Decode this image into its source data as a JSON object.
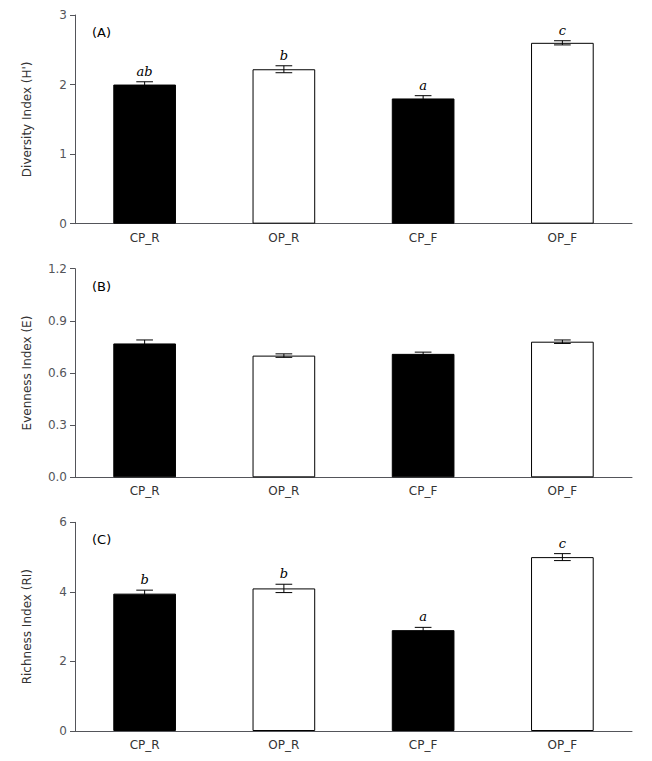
{
  "chart_data": [
    {
      "type": "bar",
      "title": "(A)",
      "ylabel": "Diversity Index (H')",
      "categories": [
        "CP_R",
        "OP_R",
        "CP_F",
        "OP_F"
      ],
      "values": [
        2.0,
        2.22,
        1.8,
        2.6
      ],
      "errors": [
        0.04,
        0.05,
        0.04,
        0.03
      ],
      "significance": [
        "ab",
        "b",
        "a",
        "c"
      ],
      "colors": [
        "#000000",
        "#ffffff",
        "#000000",
        "#ffffff"
      ],
      "ylim": [
        0,
        3
      ],
      "yticks": [
        0,
        1,
        2,
        3
      ],
      "grid": false
    },
    {
      "type": "bar",
      "title": "(B)",
      "ylabel": "Evenness Index (E)",
      "categories": [
        "CP_R",
        "OP_R",
        "CP_F",
        "OP_F"
      ],
      "values": [
        0.77,
        0.7,
        0.71,
        0.78
      ],
      "errors": [
        0.02,
        0.01,
        0.01,
        0.01
      ],
      "colors": [
        "#000000",
        "#ffffff",
        "#000000",
        "#ffffff"
      ],
      "ylim": [
        0,
        1.2
      ],
      "yticks": [
        {
          "value": 0,
          "label": "0.0"
        },
        0.3,
        0.6,
        0.9,
        1.2
      ],
      "grid": false
    },
    {
      "type": "bar",
      "title": "(C)",
      "ylabel": "Richness Index (RI)",
      "categories": [
        "CP_R",
        "OP_R",
        "CP_F",
        "OP_F"
      ],
      "values": [
        3.95,
        4.1,
        2.9,
        5.0
      ],
      "errors": [
        0.1,
        0.12,
        0.08,
        0.1
      ],
      "significance": [
        "b",
        "b",
        "a",
        "c"
      ],
      "colors": [
        "#000000",
        "#ffffff",
        "#000000",
        "#ffffff"
      ],
      "ylim": [
        0,
        6
      ],
      "yticks": [
        0,
        2,
        4,
        6
      ],
      "grid": false
    }
  ]
}
